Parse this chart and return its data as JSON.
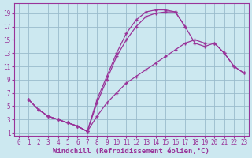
{
  "background_color": "#cce8f0",
  "grid_color": "#99bbcc",
  "line_color": "#993399",
  "xlabel": "Windchill (Refroidissement éolien,°C)",
  "xlim": [
    -0.5,
    23.5
  ],
  "ylim": [
    0.5,
    20.5
  ],
  "xticks": [
    0,
    1,
    2,
    3,
    4,
    5,
    6,
    7,
    8,
    9,
    10,
    11,
    12,
    13,
    14,
    15,
    16,
    17,
    18,
    19,
    20,
    21,
    22,
    23
  ],
  "yticks": [
    1,
    3,
    5,
    7,
    9,
    11,
    13,
    15,
    17,
    19
  ],
  "curve1_x": [
    1,
    2,
    3,
    4,
    5,
    6,
    7,
    8,
    9,
    10,
    11,
    12,
    13,
    14,
    15,
    16,
    17
  ],
  "curve1_y": [
    6.0,
    4.5,
    3.5,
    3.0,
    2.5,
    2.0,
    1.2,
    6.0,
    9.5,
    13.0,
    16.0,
    18.0,
    19.2,
    19.5,
    19.5,
    19.2,
    17.0
  ],
  "curve2_x": [
    1,
    2,
    3,
    4,
    5,
    6,
    7,
    8,
    9,
    10,
    11,
    12,
    13,
    14,
    15,
    16,
    17,
    18,
    19,
    20,
    21,
    22,
    23
  ],
  "curve2_y": [
    6.0,
    4.5,
    3.5,
    3.0,
    2.5,
    2.0,
    1.2,
    5.5,
    9.0,
    12.5,
    15.0,
    17.0,
    18.5,
    19.0,
    19.2,
    19.2,
    17.0,
    14.5,
    14.0,
    14.5,
    13.0,
    11.0,
    10.0
  ],
  "curve3_x": [
    1,
    2,
    3,
    4,
    5,
    6,
    7,
    8,
    9,
    10,
    11,
    12,
    13,
    14,
    15,
    16,
    17,
    18,
    19,
    20,
    21,
    22,
    23
  ],
  "curve3_y": [
    6.0,
    4.5,
    3.5,
    3.0,
    2.5,
    2.0,
    1.2,
    3.5,
    5.5,
    7.0,
    8.5,
    9.5,
    10.5,
    11.5,
    12.5,
    13.5,
    14.5,
    15.0,
    14.5,
    14.5,
    13.0,
    11.0,
    10.0
  ],
  "tick_fontsize": 5.5,
  "xlabel_fontsize": 6.5
}
